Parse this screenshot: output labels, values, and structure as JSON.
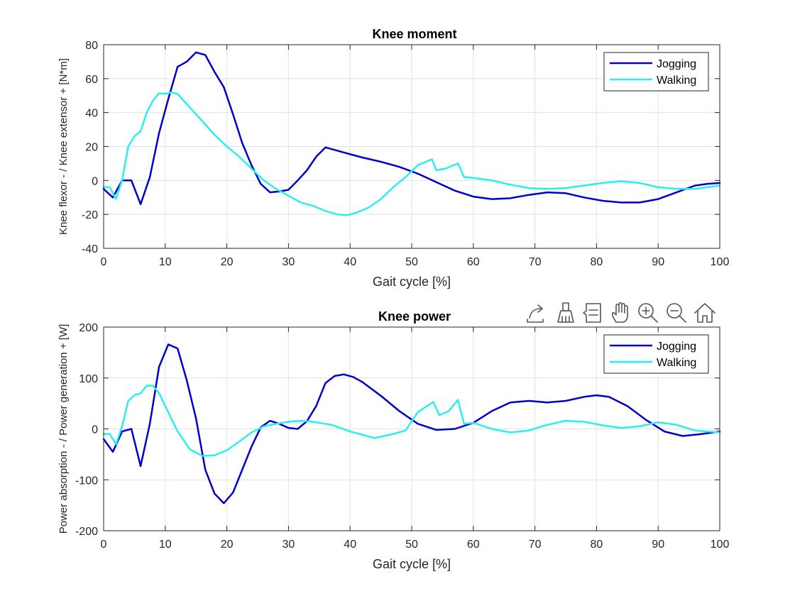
{
  "chart_data": [
    {
      "type": "line",
      "title": "Knee moment",
      "xlabel": "Gait cycle [%]",
      "ylabel": "Knee flexor - / Knee extensor + [N*m]",
      "xlim": [
        0,
        100
      ],
      "ylim": [
        -40,
        80
      ],
      "xticks": [
        0,
        10,
        20,
        30,
        40,
        50,
        60,
        70,
        80,
        90,
        100
      ],
      "yticks": [
        -40,
        -20,
        0,
        20,
        40,
        60,
        80
      ],
      "grid": true,
      "legend_position": "top-right",
      "series": [
        {
          "name": "Jogging",
          "color": "#0000cc",
          "x": [
            0,
            1.5,
            3,
            4.5,
            6,
            7.5,
            9,
            10.5,
            12,
            13.5,
            15,
            16.5,
            18,
            19.5,
            21,
            22.5,
            24,
            25.5,
            27,
            28.5,
            30,
            31.5,
            33,
            34.5,
            36,
            37.5,
            39,
            40.5,
            42,
            45,
            48,
            51,
            54,
            57,
            60,
            63,
            66,
            69,
            72,
            75,
            78,
            81,
            84,
            87,
            90,
            93,
            96,
            98,
            100
          ],
          "y": [
            -5,
            -10,
            0,
            0,
            -14,
            2,
            28,
            48,
            67,
            70,
            75.5,
            74,
            64,
            55,
            39,
            22,
            9,
            -2,
            -7,
            -6.5,
            -5.5,
            0,
            6,
            14,
            19.5,
            18,
            16.5,
            15,
            13.5,
            11,
            8,
            4,
            -1,
            -6,
            -9.5,
            -11,
            -10.5,
            -8.5,
            -7,
            -7.5,
            -10,
            -12,
            -13,
            -13,
            -11,
            -7,
            -3,
            -2,
            -1.5
          ]
        },
        {
          "name": "Walking",
          "color": "#2ceeee",
          "x": [
            0,
            1,
            2,
            3,
            4,
            5,
            6,
            7,
            8,
            9,
            10,
            11,
            12,
            13,
            14,
            16,
            18,
            20,
            22,
            24,
            26,
            28,
            30,
            32,
            34,
            36,
            38,
            39.5,
            41,
            43,
            45,
            47,
            49,
            51,
            53.3,
            54,
            55.5,
            57.5,
            58.5,
            60,
            63,
            66,
            69,
            72,
            75,
            78,
            81,
            84,
            87,
            90,
            93,
            96,
            100
          ],
          "y": [
            -4,
            -4,
            -11,
            0,
            20,
            26,
            29,
            40,
            47,
            51.5,
            51,
            52,
            51,
            47,
            43,
            35,
            27,
            20,
            14,
            7,
            0,
            -5,
            -9,
            -13,
            -15,
            -18,
            -20,
            -20.5,
            -19,
            -16,
            -11,
            -4,
            2,
            9,
            12.5,
            6,
            7,
            10,
            2,
            1.5,
            0,
            -2.5,
            -4.5,
            -5,
            -4.5,
            -3,
            -1.5,
            -0.5,
            -1.5,
            -4,
            -5,
            -5,
            -3
          ]
        }
      ]
    },
    {
      "type": "line",
      "title": "Knee power",
      "xlabel": "Gait cycle [%]",
      "ylabel": "Power absorption - / Power generation + [W]",
      "xlim": [
        0,
        100
      ],
      "ylim": [
        -200,
        200
      ],
      "xticks": [
        0,
        10,
        20,
        30,
        40,
        50,
        60,
        70,
        80,
        90,
        100
      ],
      "yticks": [
        -200,
        -100,
        0,
        100,
        200
      ],
      "grid": true,
      "legend_position": "top-right",
      "series": [
        {
          "name": "Jogging",
          "color": "#0000cc",
          "x": [
            0,
            1.5,
            3,
            4.5,
            6,
            7.5,
            9,
            10.5,
            12,
            13.5,
            15,
            16.5,
            18,
            19.5,
            21,
            22.5,
            24,
            25.5,
            27,
            28.5,
            30,
            31.5,
            33,
            34.5,
            36,
            37.5,
            39,
            40.5,
            42,
            45,
            48,
            51,
            54,
            57,
            60,
            63,
            66,
            69,
            72,
            75,
            78,
            80,
            82,
            85,
            88,
            91,
            94,
            97,
            100
          ],
          "y": [
            -20,
            -45,
            -5,
            0,
            -73,
            10,
            122,
            166,
            158,
            95,
            20,
            -80,
            -127,
            -146,
            -125,
            -80,
            -35,
            3,
            16,
            10,
            2,
            0,
            15,
            45,
            90,
            104,
            107,
            102,
            92,
            65,
            35,
            10,
            -2,
            0,
            12,
            35,
            52,
            55,
            52,
            55,
            63,
            66,
            63,
            45,
            18,
            -5,
            -14,
            -10,
            -5
          ]
        },
        {
          "name": "Walking",
          "color": "#2ceeee",
          "x": [
            0,
            1,
            2,
            3,
            4,
            5,
            6,
            7,
            8,
            9,
            10,
            11,
            12,
            14,
            16,
            18,
            20,
            22,
            24,
            26,
            28,
            30,
            32,
            34,
            37,
            40,
            44,
            47,
            49,
            51,
            53.5,
            54.5,
            56,
            57.5,
            58.5,
            60,
            63,
            66,
            69,
            72,
            75,
            78,
            81,
            84,
            87,
            90,
            93,
            96,
            100
          ],
          "y": [
            -10,
            -10,
            -30,
            5,
            55,
            66,
            70,
            85,
            85,
            70,
            45,
            20,
            -5,
            -40,
            -53,
            -52,
            -42,
            -25,
            -7,
            5,
            10,
            14,
            16,
            14,
            8,
            -5,
            -18,
            -10,
            -3,
            33,
            53,
            27,
            35,
            57,
            10,
            12,
            0,
            -7,
            -3,
            8,
            16,
            14,
            7,
            2,
            5,
            13,
            8,
            -3,
            -7
          ]
        }
      ]
    }
  ]
}
